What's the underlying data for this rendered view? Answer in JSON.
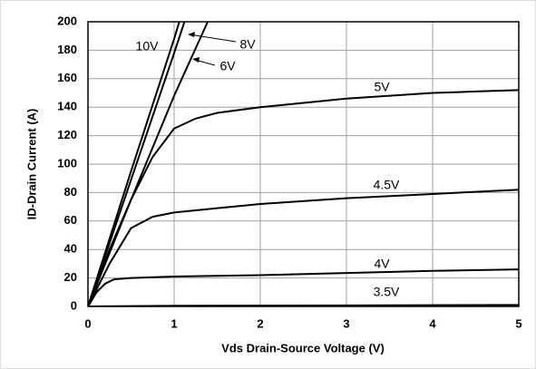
{
  "chart_data": {
    "type": "line",
    "xlabel": "Vds Drain-Source Voltage (V)",
    "ylabel": "ID-Drain Current (A)",
    "xlim": [
      0,
      5
    ],
    "xticks": [
      0,
      1,
      2,
      3,
      4,
      5
    ],
    "ylim": [
      0,
      200
    ],
    "yticks": [
      0,
      20,
      40,
      60,
      80,
      100,
      120,
      140,
      160,
      180,
      200
    ],
    "grid": true,
    "series": [
      {
        "name": "10V",
        "color": "#000000",
        "x": [
          0,
          0.5,
          1,
          1.06
        ],
        "values": [
          0,
          95,
          188,
          200
        ]
      },
      {
        "name": "8V",
        "color": "#000000",
        "x": [
          0,
          0.5,
          1,
          1.12
        ],
        "values": [
          0,
          89,
          178,
          200
        ]
      },
      {
        "name": "6V",
        "color": "#000000",
        "x": [
          0,
          0.5,
          1,
          1.39
        ],
        "values": [
          0,
          75,
          148,
          200
        ]
      },
      {
        "name": "5V",
        "color": "#000000",
        "x": [
          0,
          0.25,
          0.5,
          0.75,
          1,
          1.25,
          1.5,
          2,
          2.5,
          3,
          3.5,
          4,
          4.5,
          5
        ],
        "values": [
          0,
          40,
          75,
          105,
          125,
          132,
          136,
          140,
          143,
          146,
          148,
          150,
          151,
          152
        ]
      },
      {
        "name": "4.5V",
        "color": "#000000",
        "x": [
          0,
          0.25,
          0.5,
          0.75,
          1,
          1.5,
          2,
          3,
          4,
          5
        ],
        "values": [
          0,
          30,
          55,
          63,
          66,
          69,
          72,
          76,
          79,
          82
        ]
      },
      {
        "name": "4V",
        "color": "#000000",
        "x": [
          0,
          0.1,
          0.2,
          0.3,
          0.5,
          1,
          2,
          3,
          4,
          5
        ],
        "values": [
          0,
          10,
          16,
          19,
          20,
          21,
          22,
          23.5,
          25,
          26
        ]
      },
      {
        "name": "3.5V",
        "color": "#000000",
        "x": [
          0,
          1,
          5
        ],
        "values": [
          0,
          0.5,
          1
        ]
      }
    ]
  }
}
